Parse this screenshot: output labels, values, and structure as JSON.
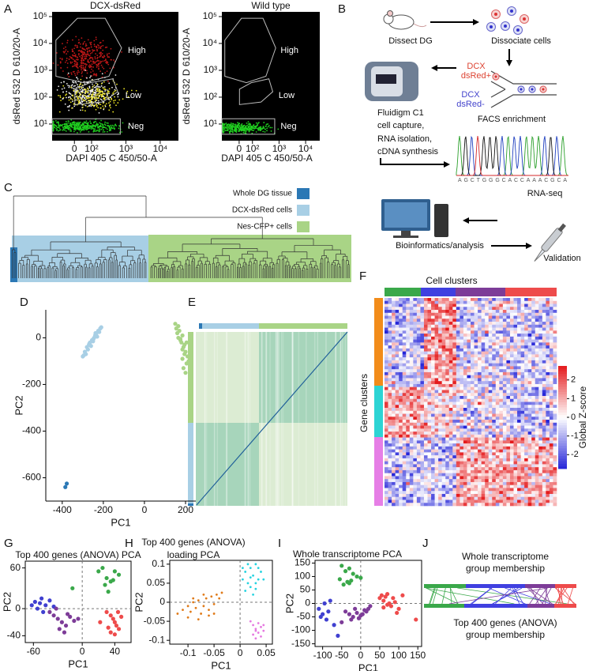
{
  "panel_labels": [
    "A",
    "B",
    "C",
    "D",
    "E",
    "F",
    "G",
    "H",
    "I",
    "J"
  ],
  "facs": {
    "plots": [
      {
        "title": "DCX-dsRed"
      },
      {
        "title": "Wild type"
      }
    ],
    "xlabel": "DAPI 405 C 450/50-A",
    "ylabel": "dsRed 532 D 610/20-A",
    "xscale": "logicle",
    "yscale": "log",
    "xlim": [
      -130,
      34000
    ],
    "ylim": [
      2.4,
      150000
    ],
    "xticks": [
      0,
      {
        "value": 100,
        "label": "10²"
      },
      {
        "value": 1000,
        "label": "10³"
      },
      {
        "value": 10000,
        "label": "10⁴"
      }
    ],
    "yticks": [
      {
        "value": 10,
        "label": "10¹"
      },
      {
        "value": 100,
        "label": "10²"
      },
      {
        "value": 1000,
        "label": "10³"
      },
      {
        "value": 10000,
        "label": "10⁴"
      },
      {
        "value": 100000,
        "label": "10⁵"
      }
    ],
    "gates": [
      "High",
      "Low",
      "Neg"
    ]
  },
  "workflow": {
    "dissect": "Dissect DG",
    "dissociate": "Dissociate cells",
    "dcx_pos": [
      "DCX",
      "dsRed+"
    ],
    "dcx_neg": [
      "DCX",
      "dsRed-"
    ],
    "fluidigm": [
      "Fluidigm C1",
      "cell capture,",
      "RNA isolation,",
      "cDNA synthesis"
    ],
    "facs": "FACS enrichment",
    "sequence": "AGCTGGGCACCAAACGCA",
    "rnaseq": "RNA-seq",
    "bioinformatics": "Bioinformatics/analysis",
    "validation": "Validation"
  },
  "dendrogram": {
    "legend": [
      {
        "name": "Whole DG tissue",
        "color": "#2b78b5"
      },
      {
        "name": "DCX-dsRed cells",
        "color": "#a8cfe5"
      },
      {
        "name": "Nes-CFP+ cells",
        "color": "#a9d486"
      }
    ]
  },
  "chart_data": [
    {
      "type": "scatter",
      "xlabel": "PC1",
      "ylabel": "PC2",
      "frame": false,
      "zero_lines": false,
      "xlim": [
        -480,
        250
      ],
      "ylim": [
        -700,
        120
      ],
      "xticks": [
        -400,
        -200,
        0,
        200
      ],
      "yticks": [
        0,
        -200,
        -400,
        -600
      ],
      "series": [
        {
          "color": "#2b78b5",
          "x": [
            -385,
            -378
          ],
          "y": [
            -640,
            -625
          ]
        },
        {
          "color": "#a8cfe5",
          "x": [
            -300,
            -290,
            -285,
            -280,
            -275,
            -270,
            -265,
            -260,
            -255,
            -250,
            -245,
            -240,
            -235,
            -230,
            -225,
            -220,
            -215,
            -210,
            -295,
            -268,
            -248,
            -238
          ],
          "y": [
            -80,
            -60,
            -70,
            -40,
            -50,
            -30,
            -20,
            -35,
            -10,
            -15,
            0,
            10,
            15,
            5,
            30,
            25,
            40,
            45,
            -75,
            -25,
            -5,
            20
          ]
        },
        {
          "color": "#a9d486",
          "x": [
            150,
            155,
            160,
            165,
            170,
            175,
            180,
            185,
            190,
            195,
            200,
            205,
            210,
            215,
            165,
            175,
            185,
            195,
            205,
            190,
            200,
            185
          ],
          "y": [
            60,
            40,
            20,
            0,
            30,
            -10,
            -20,
            10,
            -40,
            -30,
            -60,
            -20,
            -80,
            -100,
            50,
            -5,
            -50,
            -70,
            -110,
            -130,
            -150,
            -90
          ]
        }
      ]
    },
    {
      "type": "scatter",
      "title": "Top 400 genes (ANOVA) PCA",
      "xlabel": "PC1",
      "ylabel": "PC2",
      "frame": true,
      "zero_lines": true,
      "xlim": [
        -70,
        60
      ],
      "ylim": [
        -50,
        70
      ],
      "xticks": [
        -60,
        0,
        40
      ],
      "yticks": [
        60,
        0,
        -40
      ],
      "series": [
        {
          "color": "#3aa84a",
          "x": [
            20,
            25,
            30,
            35,
            40,
            45,
            28,
            38,
            -12,
            32
          ],
          "y": [
            55,
            60,
            45,
            40,
            55,
            50,
            35,
            42,
            30,
            25
          ]
        },
        {
          "color": "#4040d0",
          "x": [
            -62,
            -58,
            -55,
            -50,
            -45,
            -40,
            -48,
            -52,
            -35
          ],
          "y": [
            5,
            10,
            0,
            15,
            5,
            12,
            -5,
            8,
            3
          ]
        },
        {
          "color": "#7d3c98",
          "x": [
            -40,
            -35,
            -30,
            -25,
            -20,
            -15,
            -10,
            -28,
            -18,
            -22,
            -5,
            -32
          ],
          "y": [
            -5,
            -10,
            -15,
            -20,
            -25,
            -12,
            -18,
            -30,
            -8,
            -35,
            -15,
            0
          ]
        },
        {
          "color": "#ee4b4b",
          "x": [
            30,
            35,
            38,
            40,
            42,
            45,
            48,
            35,
            40,
            44,
            32,
            22
          ],
          "y": [
            -5,
            -10,
            -15,
            -20,
            -25,
            -30,
            -12,
            -35,
            -38,
            -5,
            -28,
            -20
          ]
        }
      ]
    },
    {
      "type": "scatter",
      "title": [
        "Top 400 genes (ANOVA)",
        "loading PCA"
      ],
      "xlabel": "PC1",
      "ylabel": "PC2",
      "frame": true,
      "zero_lines": true,
      "xlim": [
        -0.135,
        0.062
      ],
      "ylim": [
        -0.11,
        0.11
      ],
      "xticks": [
        -0.1,
        -0.05,
        0,
        0.05
      ],
      "yticks": [
        0.1,
        0.05,
        0,
        -0.05,
        -0.1
      ],
      "series": [
        {
          "color": "#e07b1a",
          "x": [
            -0.12,
            -0.11,
            -0.1,
            -0.095,
            -0.09,
            -0.085,
            -0.08,
            -0.075,
            -0.07,
            -0.065,
            -0.06,
            -0.055,
            -0.05,
            -0.045,
            -0.04,
            -0.035,
            -0.1,
            -0.08,
            -0.06,
            -0.07,
            -0.05,
            -0.09
          ],
          "y": [
            -0.03,
            -0.02,
            -0.01,
            -0.025,
            0,
            -0.015,
            0.005,
            -0.03,
            -0.01,
            0.01,
            -0.02,
            0.015,
            -0.005,
            0.02,
            0.01,
            0.025,
            -0.04,
            -0.045,
            -0.035,
            0.02,
            -0.03,
            0.01
          ]
        },
        {
          "color": "#27d3e0",
          "x": [
            0.005,
            0.01,
            0.015,
            0.02,
            0.025,
            0.03,
            0.035,
            0.04,
            0.01,
            0.02,
            0.03,
            0.015,
            0.025,
            0.035,
            0.045,
            0.02,
            0.005,
            0.03
          ],
          "y": [
            0.06,
            0.08,
            0.05,
            0.09,
            0.07,
            0.1,
            0.06,
            0.08,
            0.03,
            0.04,
            0.05,
            0.1,
            0.02,
            0.09,
            0.06,
            0.065,
            0.09,
            0.035
          ]
        },
        {
          "color": "#e57ae0",
          "x": [
            0.02,
            0.025,
            0.03,
            0.035,
            0.04,
            0.045,
            0.025,
            0.03,
            0.04,
            0.035,
            0.045,
            0.03
          ],
          "y": [
            -0.05,
            -0.06,
            -0.07,
            -0.08,
            -0.065,
            -0.075,
            -0.085,
            -0.095,
            -0.09,
            -0.055,
            -0.06,
            -0.075
          ]
        }
      ]
    },
    {
      "type": "scatter",
      "title": "Whole transcriptome PCA",
      "xlabel": "PC1",
      "ylabel": "PC2",
      "frame": true,
      "zero_lines": true,
      "xlim": [
        -120,
        160
      ],
      "ylim": [
        -160,
        160
      ],
      "xticks": [
        -100,
        -50,
        0,
        50,
        100,
        150
      ],
      "yticks": [
        150,
        100,
        50,
        0,
        -50,
        -100,
        -150
      ],
      "series": [
        {
          "color": "#3aa84a",
          "x": [
            -50,
            -40,
            -30,
            -20,
            -10,
            -55,
            -35,
            -25,
            0,
            -45,
            -30
          ],
          "y": [
            140,
            120,
            130,
            110,
            100,
            90,
            80,
            85,
            95,
            70,
            75
          ]
        },
        {
          "color": "#4040d0",
          "x": [
            -110,
            -100,
            -95,
            -90,
            -85,
            -80,
            -70,
            -105,
            -60
          ],
          "y": [
            -20,
            -40,
            0,
            -60,
            -30,
            10,
            -80,
            -50,
            -120
          ]
        },
        {
          "color": "#7d3c98",
          "x": [
            -40,
            -30,
            -20,
            -10,
            0,
            10,
            20,
            -25,
            -5,
            15,
            -50,
            -15,
            5,
            25
          ],
          "y": [
            -30,
            -40,
            -50,
            -35,
            -45,
            -25,
            -20,
            -60,
            -55,
            -30,
            -70,
            -20,
            -40,
            -10
          ]
        },
        {
          "color": "#ee4b4b",
          "x": [
            50,
            55,
            60,
            65,
            70,
            75,
            80,
            85,
            90,
            100,
            110,
            60,
            70,
            95,
            145
          ],
          "y": [
            20,
            30,
            10,
            25,
            35,
            0,
            -10,
            20,
            5,
            -20,
            30,
            -15,
            -5,
            -35,
            -60
          ]
        }
      ]
    }
  ],
  "heatmap": {
    "col_label": "Cell clusters",
    "row_label": "Gene clusters",
    "col_colors": [
      "#3aa84a",
      "#4040e0",
      "#7d3c98",
      "#ee4b4b"
    ],
    "row_colors": [
      "#f28c1a",
      "#2dd4d4",
      "#e67ee6"
    ],
    "colorbar": {
      "label": "Global Z-score",
      "lim": [
        -2.75,
        2.75
      ],
      "ticks": [
        2,
        1,
        0,
        -1,
        -2
      ]
    }
  },
  "membership": {
    "top": [
      "Whole transcriptome",
      "group membership"
    ],
    "bottom": [
      "Top 400 genes (ANOVA)",
      "group membership"
    ]
  }
}
